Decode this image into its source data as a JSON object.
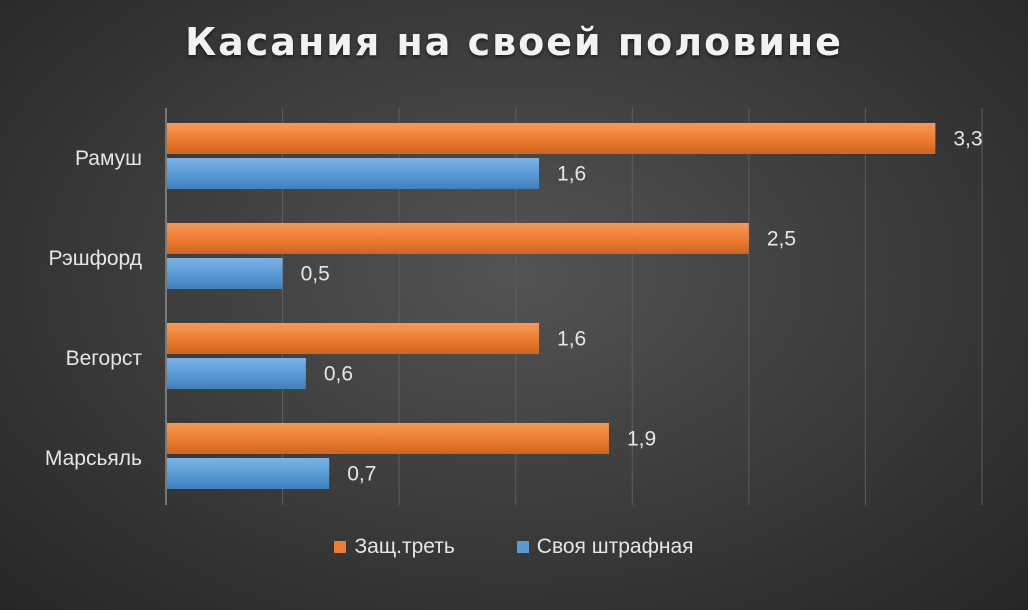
{
  "chart_data": {
    "type": "bar",
    "orientation": "horizontal",
    "title": "Касания на своей половине",
    "categories": [
      "Рамуш",
      "Рэшфорд",
      "Вегорст",
      "Марсьяль"
    ],
    "series": [
      {
        "name": "Защ.треть",
        "values": [
          3.3,
          2.5,
          1.6,
          1.9
        ],
        "labels": [
          "3,3",
          "2,5",
          "1,6",
          "1,9"
        ],
        "color": "#ed7d31"
      },
      {
        "name": "Своя штрафная",
        "values": [
          1.6,
          0.5,
          0.6,
          0.7
        ],
        "labels": [
          "1,6",
          "0,5",
          "0,6",
          "0,7"
        ],
        "color": "#5b9bd5"
      }
    ],
    "xlim": [
      0,
      3.5
    ],
    "gridlines": true,
    "legend_position": "bottom"
  }
}
